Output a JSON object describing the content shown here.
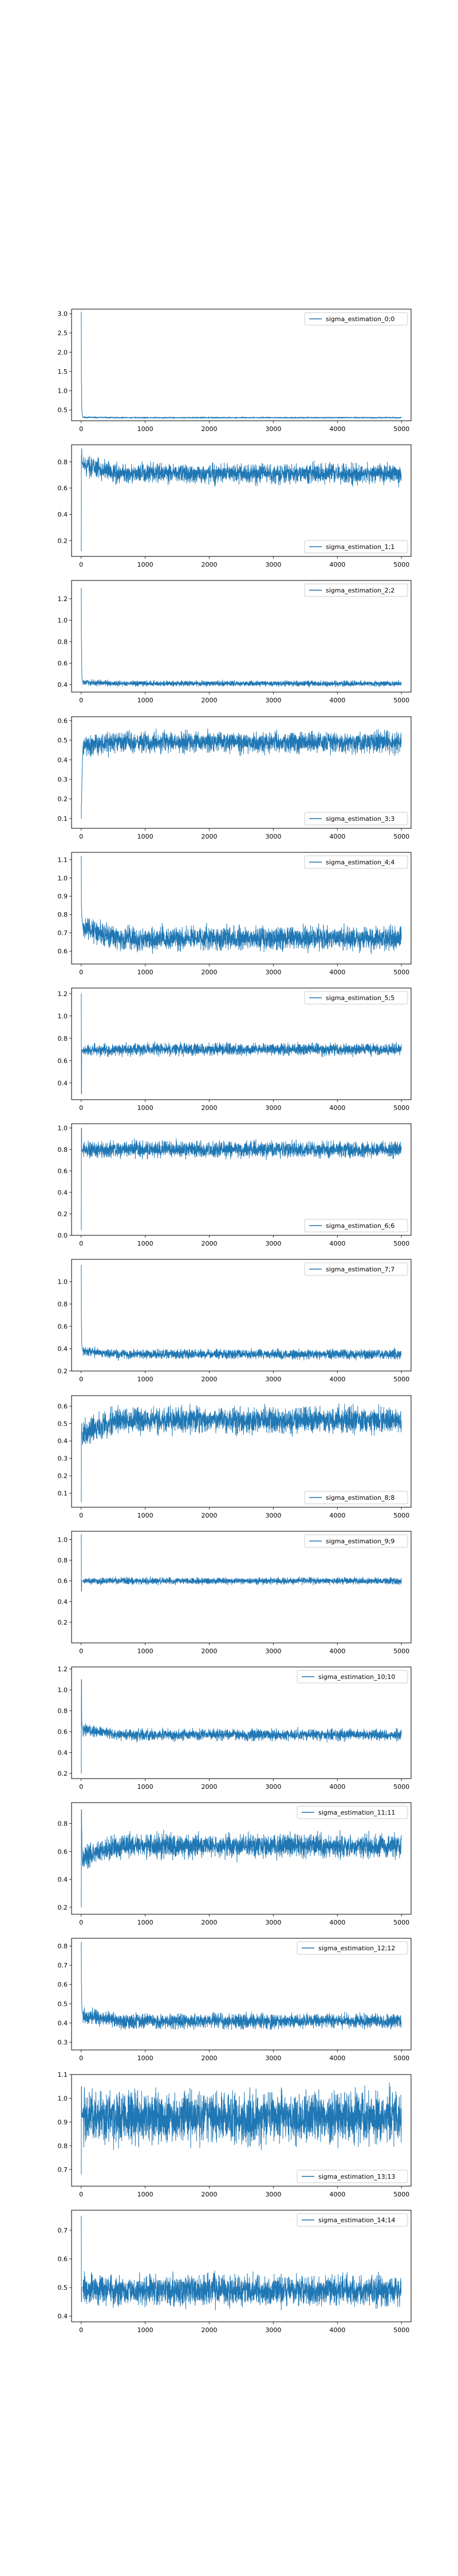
{
  "chart_data": [
    {
      "type": "line",
      "series": [
        {
          "name": "sigma_estimation_0;0",
          "color": "#1f77b4",
          "init": [
            3.05,
            1.2,
            0.6,
            0.45,
            0.38,
            0.34,
            0.32,
            0.31
          ],
          "level": 0.3,
          "noise": 0.008
        }
      ],
      "xlim": [
        -150,
        5150
      ],
      "ylim": [
        0.22,
        3.12
      ],
      "xticks": [
        0,
        1000,
        2000,
        3000,
        4000,
        5000
      ],
      "yticks": [
        0.5,
        1.0,
        1.5,
        2.0,
        2.5,
        3.0
      ],
      "ytick_labels": [
        "0.5",
        "1.0",
        "1.5",
        "2.0",
        "2.5",
        "3.0"
      ],
      "legend_loc": "upper-right"
    },
    {
      "type": "line",
      "series": [
        {
          "name": "sigma_estimation_1;1",
          "color": "#1f77b4",
          "init": [
            0.12,
            0.85,
            0.9,
            0.8,
            0.78,
            0.8,
            0.79,
            0.78
          ],
          "level": 0.71,
          "noise": 0.035
        }
      ],
      "xlim": [
        -150,
        5150
      ],
      "ylim": [
        0.08,
        0.93
      ],
      "xticks": [
        0,
        1000,
        2000,
        3000,
        4000,
        5000
      ],
      "yticks": [
        0.2,
        0.4,
        0.6,
        0.8
      ],
      "ytick_labels": [
        "0.2",
        "0.4",
        "0.6",
        "0.8"
      ],
      "legend_loc": "lower-right"
    },
    {
      "type": "line",
      "series": [
        {
          "name": "sigma_estimation_2;2",
          "color": "#1f77b4",
          "init": [
            1.3,
            0.8,
            0.55,
            0.47,
            0.44,
            0.43,
            0.42,
            0.42
          ],
          "level": 0.41,
          "noise": 0.012
        }
      ],
      "xlim": [
        -150,
        5150
      ],
      "ylim": [
        0.33,
        1.37
      ],
      "xticks": [
        0,
        1000,
        2000,
        3000,
        4000,
        5000
      ],
      "yticks": [
        0.4,
        0.6,
        0.8,
        1.0,
        1.2
      ],
      "ytick_labels": [
        "0.4",
        "0.6",
        "0.8",
        "1.0",
        "1.2"
      ],
      "legend_loc": "upper-right"
    },
    {
      "type": "line",
      "series": [
        {
          "name": "sigma_estimation_3;3",
          "color": "#1f77b4",
          "init": [
            0.1,
            0.18,
            0.25,
            0.3,
            0.35,
            0.4,
            0.44,
            0.47
          ],
          "level": 0.49,
          "noise": 0.025
        }
      ],
      "xlim": [
        -150,
        5150
      ],
      "ylim": [
        0.05,
        0.62
      ],
      "xticks": [
        0,
        1000,
        2000,
        3000,
        4000,
        5000
      ],
      "yticks": [
        0.1,
        0.2,
        0.3,
        0.4,
        0.5,
        0.6
      ],
      "ytick_labels": [
        "0.1",
        "0.2",
        "0.3",
        "0.4",
        "0.5",
        "0.6"
      ],
      "legend_loc": "lower-right"
    },
    {
      "type": "line",
      "series": [
        {
          "name": "sigma_estimation_4;4",
          "color": "#1f77b4",
          "init": [
            1.12,
            0.85,
            0.8,
            0.78,
            0.76,
            0.75,
            0.74,
            0.73
          ],
          "level": 0.67,
          "noise": 0.03
        }
      ],
      "xlim": [
        -150,
        5150
      ],
      "ylim": [
        0.53,
        1.14
      ],
      "xticks": [
        0,
        1000,
        2000,
        3000,
        4000,
        5000
      ],
      "yticks": [
        0.6,
        0.7,
        0.8,
        0.9,
        1.0,
        1.1
      ],
      "ytick_labels": [
        "0.6",
        "0.7",
        "0.8",
        "0.9",
        "1.0",
        "1.1"
      ],
      "legend_loc": "upper-right"
    },
    {
      "type": "line",
      "series": [
        {
          "name": "sigma_estimation_5;5",
          "color": "#1f77b4",
          "init": [
            1.2,
            0.3,
            0.68,
            0.7,
            0.69,
            0.68,
            0.68,
            0.69
          ],
          "level": 0.7,
          "noise": 0.025
        }
      ],
      "xlim": [
        -150,
        5150
      ],
      "ylim": [
        0.25,
        1.25
      ],
      "xticks": [
        0,
        1000,
        2000,
        3000,
        4000,
        5000
      ],
      "yticks": [
        0.4,
        0.6,
        0.8,
        1.0,
        1.2
      ],
      "ytick_labels": [
        "0.4",
        "0.6",
        "0.8",
        "1.0",
        "1.2"
      ],
      "legend_loc": "upper-right"
    },
    {
      "type": "line",
      "series": [
        {
          "name": "sigma_estimation_6;6",
          "color": "#1f77b4",
          "init": [
            0.05,
            1.0,
            0.8,
            0.78,
            0.79,
            0.8,
            0.8,
            0.8
          ],
          "level": 0.8,
          "noise": 0.035
        }
      ],
      "xlim": [
        -150,
        5150
      ],
      "ylim": [
        0.0,
        1.04
      ],
      "xticks": [
        0,
        1000,
        2000,
        3000,
        4000,
        5000
      ],
      "yticks": [
        0.0,
        0.2,
        0.4,
        0.6,
        0.8,
        1.0
      ],
      "ytick_labels": [
        "0.0",
        "0.2",
        "0.4",
        "0.6",
        "0.8",
        "1.0"
      ],
      "legend_loc": "lower-right"
    },
    {
      "type": "line",
      "series": [
        {
          "name": "sigma_estimation_7;7",
          "color": "#1f77b4",
          "init": [
            1.15,
            0.6,
            0.45,
            0.42,
            0.4,
            0.39,
            0.38,
            0.38
          ],
          "level": 0.35,
          "noise": 0.02
        }
      ],
      "xlim": [
        -150,
        5150
      ],
      "ylim": [
        0.2,
        1.2
      ],
      "xticks": [
        0,
        1000,
        2000,
        3000,
        4000,
        5000
      ],
      "yticks": [
        0.2,
        0.4,
        0.6,
        0.8,
        1.0
      ],
      "ytick_labels": [
        "0.2",
        "0.4",
        "0.6",
        "0.8",
        "1.0"
      ],
      "legend_loc": "upper-right"
    },
    {
      "type": "line",
      "series": [
        {
          "name": "sigma_estimation_8;8",
          "color": "#1f77b4",
          "init": [
            0.05,
            0.45,
            0.5,
            0.45,
            0.42,
            0.38,
            0.4,
            0.45
          ],
          "level": 0.52,
          "noise": 0.035
        }
      ],
      "xlim": [
        -150,
        5150
      ],
      "ylim": [
        0.02,
        0.66
      ],
      "xticks": [
        0,
        1000,
        2000,
        3000,
        4000,
        5000
      ],
      "yticks": [
        0.1,
        0.2,
        0.3,
        0.4,
        0.5,
        0.6
      ],
      "ytick_labels": [
        "0.1",
        "0.2",
        "0.3",
        "0.4",
        "0.5",
        "0.6"
      ],
      "legend_loc": "lower-right"
    },
    {
      "type": "line",
      "series": [
        {
          "name": "sigma_estimation_9;9",
          "color": "#1f77b4",
          "init": [
            1.05,
            0.5,
            0.6,
            0.6,
            0.6,
            0.6,
            0.6,
            0.6
          ],
          "level": 0.6,
          "noise": 0.015
        }
      ],
      "xlim": [
        -150,
        5150
      ],
      "ylim": [
        0.0,
        1.08
      ],
      "xticks": [
        0,
        1000,
        2000,
        3000,
        4000,
        5000
      ],
      "yticks": [
        0.2,
        0.4,
        0.6,
        0.8,
        1.0
      ],
      "ytick_labels": [
        "0.2",
        "0.4",
        "0.6",
        "0.8",
        "1.0"
      ],
      "legend_loc": "upper-right"
    },
    {
      "type": "line",
      "series": [
        {
          "name": "sigma_estimation_10;10",
          "color": "#1f77b4",
          "init": [
            0.2,
            1.1,
            0.7,
            0.66,
            0.64,
            0.63,
            0.62,
            0.62
          ],
          "level": 0.57,
          "noise": 0.025
        }
      ],
      "xlim": [
        -150,
        5150
      ],
      "ylim": [
        0.15,
        1.22
      ],
      "xticks": [
        0,
        1000,
        2000,
        3000,
        4000,
        5000
      ],
      "yticks": [
        0.2,
        0.4,
        0.6,
        0.8,
        1.0,
        1.2
      ],
      "ytick_labels": [
        "0.2",
        "0.4",
        "0.6",
        "0.8",
        "1.0",
        "1.2"
      ],
      "legend_loc": "upper-right"
    },
    {
      "type": "line",
      "series": [
        {
          "name": "sigma_estimation_11;11",
          "color": "#1f77b4",
          "init": [
            0.2,
            0.9,
            0.75,
            0.62,
            0.55,
            0.5,
            0.52,
            0.56
          ],
          "level": 0.64,
          "noise": 0.04
        }
      ],
      "xlim": [
        -150,
        5150
      ],
      "ylim": [
        0.15,
        0.95
      ],
      "xticks": [
        0,
        1000,
        2000,
        3000,
        4000,
        5000
      ],
      "yticks": [
        0.2,
        0.4,
        0.6,
        0.8
      ],
      "ytick_labels": [
        "0.2",
        "0.4",
        "0.6",
        "0.8"
      ],
      "legend_loc": "upper-right"
    },
    {
      "type": "line",
      "series": [
        {
          "name": "sigma_estimation_12;12",
          "color": "#1f77b4",
          "init": [
            0.82,
            0.6,
            0.5,
            0.47,
            0.46,
            0.45,
            0.45,
            0.44
          ],
          "level": 0.41,
          "noise": 0.018
        }
      ],
      "xlim": [
        -150,
        5150
      ],
      "ylim": [
        0.26,
        0.84
      ],
      "xticks": [
        0,
        1000,
        2000,
        3000,
        4000,
        5000
      ],
      "yticks": [
        0.3,
        0.4,
        0.5,
        0.6,
        0.7,
        0.8
      ],
      "ytick_labels": [
        "0.3",
        "0.4",
        "0.5",
        "0.6",
        "0.7",
        "0.8"
      ],
      "legend_loc": "upper-right"
    },
    {
      "type": "line",
      "series": [
        {
          "name": "sigma_estimation_13;13",
          "color": "#1f77b4",
          "init": [
            0.68,
            1.05,
            0.95,
            0.92,
            0.94,
            0.93,
            0.92,
            0.92
          ],
          "level": 0.92,
          "noise": 0.05
        }
      ],
      "xlim": [
        -150,
        5150
      ],
      "ylim": [
        0.63,
        1.1
      ],
      "xticks": [
        0,
        1000,
        2000,
        3000,
        4000,
        5000
      ],
      "yticks": [
        0.7,
        0.8,
        0.9,
        1.0,
        1.1
      ],
      "ytick_labels": [
        "0.7",
        "0.8",
        "0.9",
        "1.0",
        "1.1"
      ],
      "legend_loc": "lower-right"
    },
    {
      "type": "line",
      "series": [
        {
          "name": "sigma_estimation_14;14",
          "color": "#1f77b4",
          "init": [
            0.75,
            0.45,
            0.5,
            0.5,
            0.5,
            0.5,
            0.5,
            0.5
          ],
          "level": 0.49,
          "noise": 0.025
        }
      ],
      "xlim": [
        -150,
        5150
      ],
      "ylim": [
        0.38,
        0.77
      ],
      "xticks": [
        0,
        1000,
        2000,
        3000,
        4000,
        5000
      ],
      "yticks": [
        0.4,
        0.5,
        0.6,
        0.7
      ],
      "ytick_labels": [
        "0.4",
        "0.5",
        "0.6",
        "0.7"
      ],
      "legend_loc": "upper-right"
    }
  ]
}
